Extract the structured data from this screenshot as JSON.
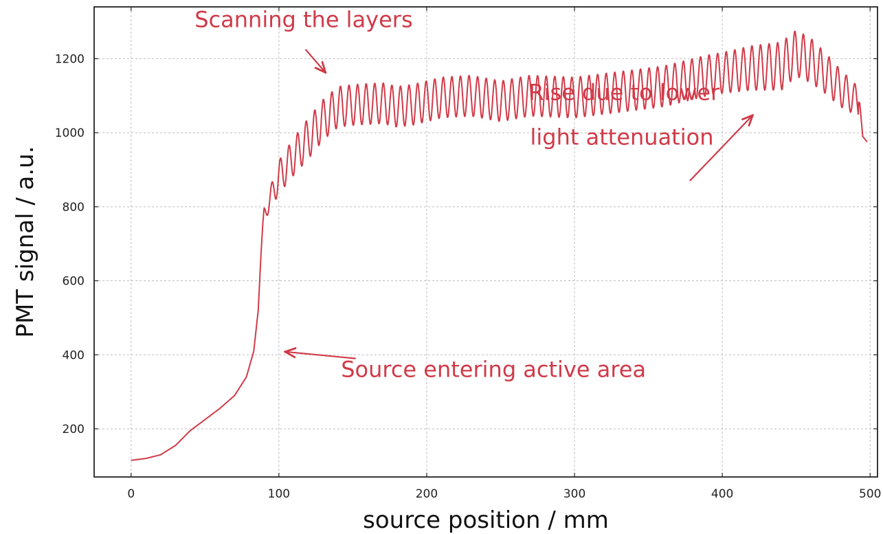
{
  "chart_data": {
    "type": "line",
    "xlabel": "source position / mm",
    "ylabel": "PMT signal / a.u.",
    "xlim": [
      -25,
      505
    ],
    "ylim": [
      70,
      1340
    ],
    "xticks": [
      0,
      100,
      200,
      300,
      400,
      500
    ],
    "yticks": [
      200,
      400,
      600,
      800,
      1000,
      1200
    ],
    "grid": true,
    "line_color": "#d03a48",
    "annotation_color": "#d03a48",
    "series": [
      {
        "baseline_points": [
          [
            0,
            115
          ],
          [
            10,
            120
          ],
          [
            20,
            130
          ],
          [
            30,
            155
          ],
          [
            40,
            195
          ],
          [
            50,
            225
          ],
          [
            60,
            255
          ],
          [
            70,
            290
          ],
          [
            78,
            340
          ],
          [
            83,
            410
          ],
          [
            86,
            520
          ],
          [
            88,
            680
          ],
          [
            90,
            780
          ],
          [
            95,
            830
          ],
          [
            100,
            880
          ],
          [
            110,
            935
          ],
          [
            120,
            985
          ],
          [
            130,
            1035
          ],
          [
            140,
            1070
          ],
          [
            150,
            1075
          ],
          [
            170,
            1080
          ],
          [
            180,
            1070
          ],
          [
            190,
            1075
          ],
          [
            210,
            1095
          ],
          [
            230,
            1100
          ],
          [
            250,
            1085
          ],
          [
            270,
            1100
          ],
          [
            300,
            1095
          ],
          [
            330,
            1110
          ],
          [
            360,
            1125
          ],
          [
            390,
            1155
          ],
          [
            420,
            1175
          ],
          [
            440,
            1180
          ],
          [
            450,
            1215
          ],
          [
            460,
            1195
          ],
          [
            470,
            1160
          ],
          [
            480,
            1120
          ],
          [
            490,
            1090
          ],
          [
            493,
            1080
          ],
          [
            495,
            990
          ],
          [
            498,
            975
          ]
        ],
        "oscillation": {
          "start": 88,
          "end": 492,
          "period": 5.8,
          "amplitude_points": [
            [
              88,
              15
            ],
            [
              100,
              45
            ],
            [
              120,
              55
            ],
            [
              140,
              55
            ],
            [
              200,
              55
            ],
            [
              300,
              55
            ],
            [
              400,
              55
            ],
            [
              440,
              65
            ],
            [
              460,
              60
            ],
            [
              480,
              50
            ],
            [
              492,
              40
            ]
          ]
        }
      }
    ],
    "annotations": [
      {
        "text": "Scanning the layers",
        "text_at": [
          43,
          1285
        ],
        "arrow_from": [
          118,
          1225
        ],
        "arrow_to": [
          131,
          1165
        ]
      },
      {
        "text": "Rise due to lower",
        "text_at": [
          269,
          1088
        ],
        "arrow_from": [
          378,
          870
        ],
        "arrow_to": [
          420,
          1045
        ]
      },
      {
        "text": "light attenuation",
        "text_at": [
          270,
          968
        ],
        "arrow_from": null,
        "arrow_to": null
      },
      {
        "text": "Source entering active area",
        "text_at": [
          142,
          340
        ],
        "arrow_from": [
          152,
          390
        ],
        "arrow_to": [
          105,
          408
        ]
      }
    ]
  }
}
